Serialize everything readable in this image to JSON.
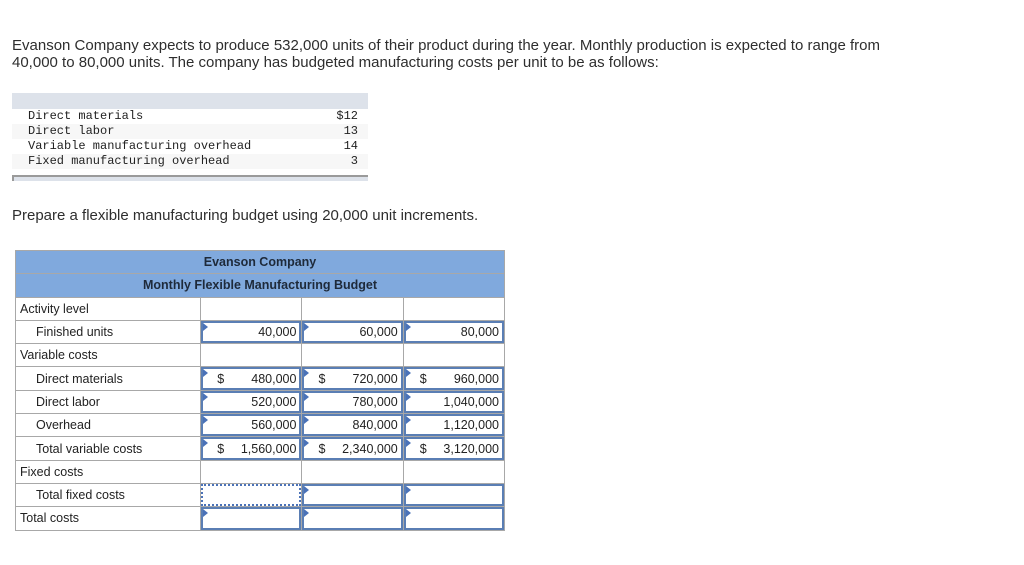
{
  "intro": {
    "line1": "Evanson Company expects to produce 532,000 units of their product during the year. Monthly production is expected to range from",
    "line2": "40,000 to 80,000 units. The company has budgeted manufacturing costs per unit to be as follows:"
  },
  "given_costs": [
    {
      "label": "Direct materials",
      "amount": "$12"
    },
    {
      "label": "Direct labor",
      "amount": "13"
    },
    {
      "label": "Variable manufacturing overhead",
      "amount": "14"
    },
    {
      "label": "Fixed manufacturing overhead",
      "amount": "3"
    }
  ],
  "instruction": "Prepare a flexible manufacturing budget using 20,000 unit increments.",
  "budget": {
    "title": "Evanson Company",
    "subtitle": "Monthly Flexible Manufacturing Budget",
    "rows": {
      "activity_level": {
        "label": "Activity level"
      },
      "finished_units": {
        "label": "Finished units",
        "values": [
          "40,000",
          "60,000",
          "80,000"
        ]
      },
      "variable_costs": {
        "label": "Variable costs"
      },
      "direct_materials": {
        "label": "Direct materials",
        "currency": "$",
        "values": [
          "480,000",
          "720,000",
          "960,000"
        ]
      },
      "direct_labor": {
        "label": "Direct labor",
        "values": [
          "520,000",
          "780,000",
          "1,040,000"
        ]
      },
      "overhead": {
        "label": "Overhead",
        "values": [
          "560,000",
          "840,000",
          "1,120,000"
        ]
      },
      "total_variable": {
        "label": "Total variable costs",
        "currency": "$",
        "values": [
          "1,560,000",
          "2,340,000",
          "3,120,000"
        ]
      },
      "fixed_costs": {
        "label": "Fixed costs"
      },
      "total_fixed": {
        "label": "Total fixed costs",
        "values": [
          "",
          "",
          ""
        ]
      },
      "total_costs": {
        "label": "Total costs",
        "values": [
          "",
          "",
          ""
        ]
      }
    }
  }
}
